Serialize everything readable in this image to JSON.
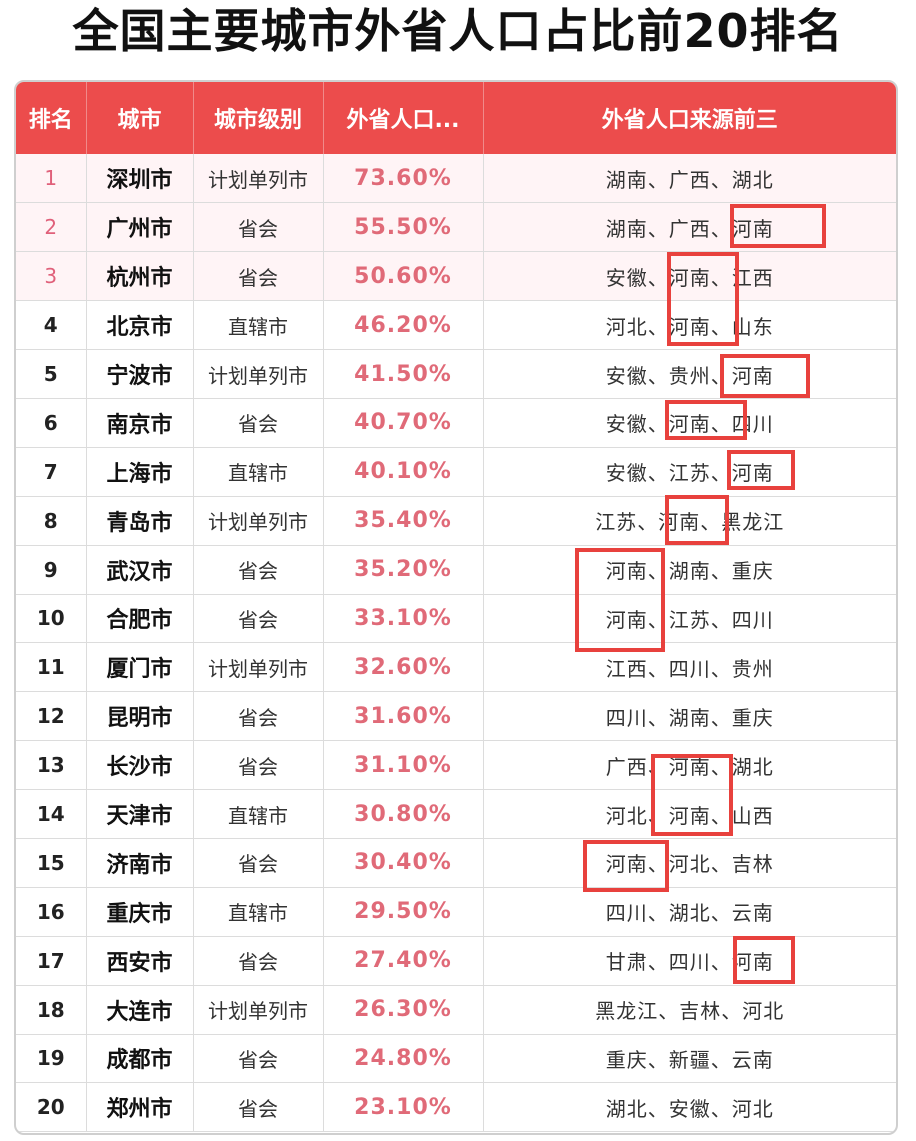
{
  "title": "全国主要城市外省人口占比前20排名",
  "headers": {
    "rank": "排名",
    "city": "城市",
    "level": "城市级别",
    "pct": "外省人口...",
    "sources": "外省人口来源前三"
  },
  "rows": [
    {
      "rank": "1",
      "city": "深圳市",
      "level": "计划单列市",
      "pct": "73.60%",
      "sources": "湖南、广西、湖北"
    },
    {
      "rank": "2",
      "city": "广州市",
      "level": "省会",
      "pct": "55.50%",
      "sources": "湖南、广西、河南"
    },
    {
      "rank": "3",
      "city": "杭州市",
      "level": "省会",
      "pct": "50.60%",
      "sources": "安徽、河南、江西"
    },
    {
      "rank": "4",
      "city": "北京市",
      "level": "直辖市",
      "pct": "46.20%",
      "sources": "河北、河南、山东"
    },
    {
      "rank": "5",
      "city": "宁波市",
      "level": "计划单列市",
      "pct": "41.50%",
      "sources": "安徽、贵州、河南"
    },
    {
      "rank": "6",
      "city": "南京市",
      "level": "省会",
      "pct": "40.70%",
      "sources": "安徽、河南、四川"
    },
    {
      "rank": "7",
      "city": "上海市",
      "level": "直辖市",
      "pct": "40.10%",
      "sources": "安徽、江苏、河南"
    },
    {
      "rank": "8",
      "city": "青岛市",
      "level": "计划单列市",
      "pct": "35.40%",
      "sources": "江苏、河南、黑龙江"
    },
    {
      "rank": "9",
      "city": "武汉市",
      "level": "省会",
      "pct": "35.20%",
      "sources": "河南、湖南、重庆"
    },
    {
      "rank": "10",
      "city": "合肥市",
      "level": "省会",
      "pct": "33.10%",
      "sources": "河南、江苏、四川"
    },
    {
      "rank": "11",
      "city": "厦门市",
      "level": "计划单列市",
      "pct": "32.60%",
      "sources": "江西、四川、贵州"
    },
    {
      "rank": "12",
      "city": "昆明市",
      "level": "省会",
      "pct": "31.60%",
      "sources": "四川、湖南、重庆"
    },
    {
      "rank": "13",
      "city": "长沙市",
      "level": "省会",
      "pct": "31.10%",
      "sources": "广西、河南、湖北"
    },
    {
      "rank": "14",
      "city": "天津市",
      "level": "直辖市",
      "pct": "30.80%",
      "sources": "河北、河南、山西"
    },
    {
      "rank": "15",
      "city": "济南市",
      "level": "省会",
      "pct": "30.40%",
      "sources": "河南、河北、吉林"
    },
    {
      "rank": "16",
      "city": "重庆市",
      "level": "直辖市",
      "pct": "29.50%",
      "sources": "四川、湖北、云南"
    },
    {
      "rank": "17",
      "city": "西安市",
      "level": "省会",
      "pct": "27.40%",
      "sources": "甘肃、四川、河南"
    },
    {
      "rank": "18",
      "city": "大连市",
      "level": "计划单列市",
      "pct": "26.30%",
      "sources": "黑龙江、吉林、河北"
    },
    {
      "rank": "19",
      "city": "成都市",
      "level": "省会",
      "pct": "24.80%",
      "sources": "重庆、新疆、云南"
    },
    {
      "rank": "20",
      "city": "郑州市",
      "level": "省会",
      "pct": "23.10%",
      "sources": "湖北、安徽、河北"
    }
  ],
  "colors": {
    "header_bg": "#ec4c4c",
    "percent_text": "#e06a78",
    "highlight_box": "#e8413d",
    "top3_row_bg": "#fff4f6"
  }
}
